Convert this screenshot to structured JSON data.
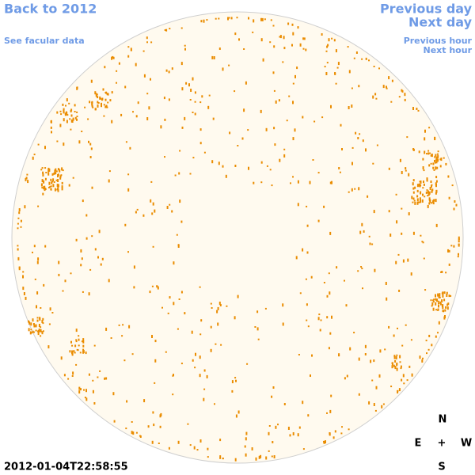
{
  "links": {
    "back": "Back to 2012",
    "facular": "See facular data",
    "previous_day": "Previous day",
    "next_day": "Next day",
    "previous_hour": "Previous hour",
    "next_hour": "Next hour"
  },
  "timestamp": "2012-01-04T22:58:55",
  "compass": {
    "north": "N",
    "east": "E",
    "center": "+",
    "west": "W",
    "south": "S"
  }
}
